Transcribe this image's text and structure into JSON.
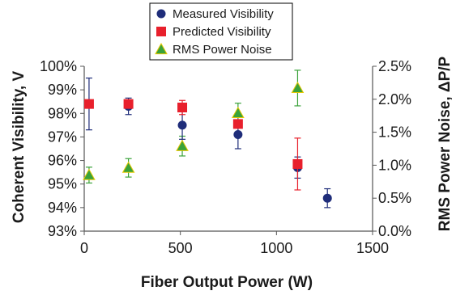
{
  "chart_data": {
    "type": "scatter",
    "title": "",
    "xlabel": "Fiber Output Power (W)",
    "ylabel_left": "Coherent Visibility, V",
    "ylabel_right": "RMS Power Noise, ΔP/P",
    "xlim": [
      0,
      1500
    ],
    "ylim_left": [
      93,
      100
    ],
    "ylim_right": [
      0,
      2.5
    ],
    "x_ticks": [
      "0",
      "500",
      "1000",
      "1500"
    ],
    "y_left_ticks": [
      "93%",
      "94%",
      "95%",
      "96%",
      "97%",
      "98%",
      "99%",
      "100%"
    ],
    "y_right_ticks": [
      "0.0%",
      "0.5%",
      "1.0%",
      "1.5%",
      "2.0%",
      "2.5%"
    ],
    "grid": false,
    "legend_position": "top-center",
    "series": [
      {
        "name": "Measured Visibility",
        "axis": "left",
        "marker": "circle",
        "color": "#1f2d7a",
        "x": [
          25,
          230,
          510,
          800,
          1110,
          1265
        ],
        "y": [
          98.4,
          98.3,
          97.5,
          97.1,
          95.7,
          94.4
        ],
        "err": [
          1.1,
          0.35,
          0.6,
          0.6,
          0.45,
          0.4
        ]
      },
      {
        "name": "Predicted Visibility",
        "axis": "left",
        "marker": "square",
        "color": "#e8202c",
        "x": [
          25,
          230,
          510,
          800,
          1110
        ],
        "y": [
          98.4,
          98.4,
          98.25,
          97.55,
          95.85
        ],
        "err": [
          0,
          0,
          0.3,
          0,
          1.1
        ]
      },
      {
        "name": "RMS Power Noise",
        "axis": "right",
        "marker": "triangle",
        "color": "#3aa23a",
        "x": [
          25,
          230,
          510,
          800,
          1110
        ],
        "y": [
          0.85,
          0.96,
          1.29,
          1.79,
          2.17
        ],
        "err": [
          0.12,
          0.14,
          0.15,
          0.15,
          0.27
        ]
      }
    ]
  }
}
